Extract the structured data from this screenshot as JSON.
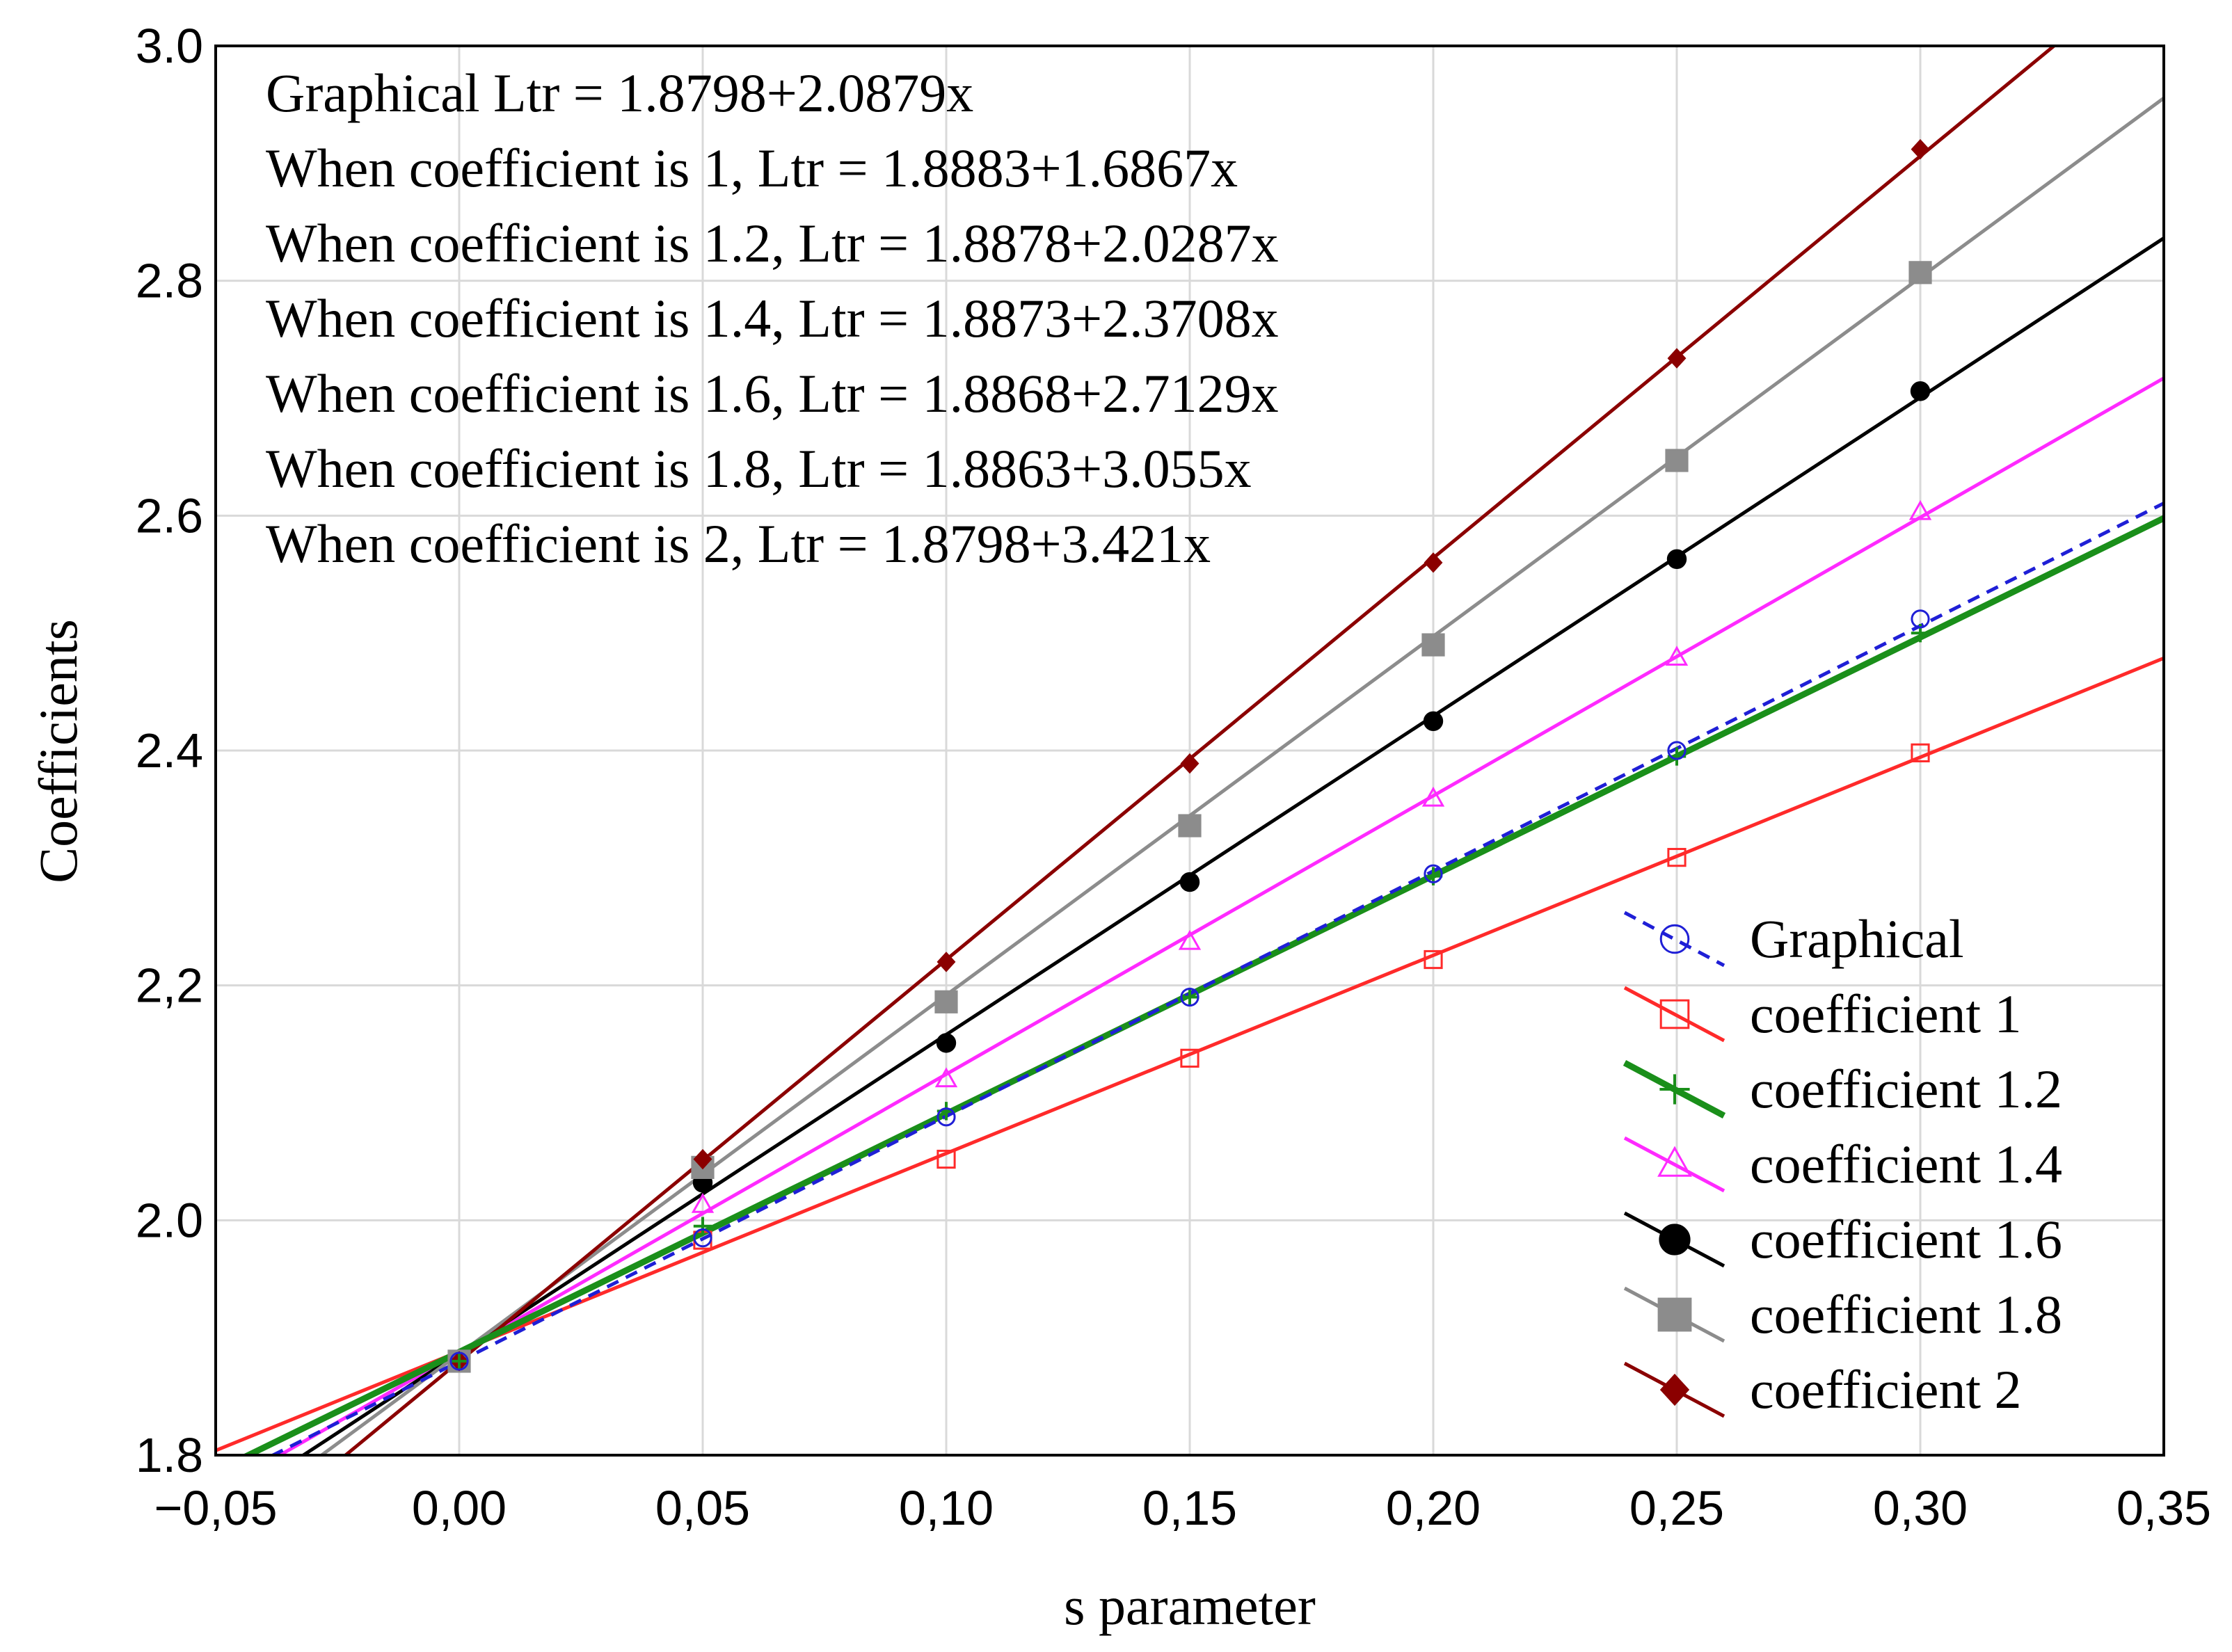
{
  "chart_data": {
    "type": "line",
    "title": "",
    "xlabel": "s parameter",
    "ylabel": "Coefficients",
    "xlim": [
      -0.05,
      0.35
    ],
    "ylim": [
      1.8,
      3.0
    ],
    "xticks": [
      -0.05,
      0.0,
      0.05,
      0.1,
      0.15,
      0.2,
      0.25,
      0.3,
      0.35
    ],
    "xtick_labels": [
      "−0,05",
      "0,00",
      "0,05",
      "0,10",
      "0,15",
      "0,20",
      "0,25",
      "0,30",
      "0,35"
    ],
    "yticks": [
      1.8,
      2.0,
      2.2,
      2.4,
      2.6,
      2.8,
      3.0
    ],
    "ytick_labels": [
      "1.8",
      "2.0",
      "2,2",
      "2.4",
      "2.6",
      "2.8",
      "3.0"
    ],
    "grid": true,
    "legend_position": "bottom-right",
    "annotations": [
      "Graphical Ltr  = 1.8798+2.0879x",
      "When coefficient is 1, Ltr = 1.8883+1.6867x",
      "When coefficient is 1.2, Ltr = 1.8878+2.0287x",
      "When coefficient is 1.4, Ltr = 1.8873+2.3708x",
      "When coefficient is 1.6, Ltr = 1.8868+2.7129x",
      "When coefficient is 1.8, Ltr  = 1.8863+3.055x",
      "When coefficient is 2, Ltr = 1.8798+3.421x"
    ],
    "x": [
      0.0,
      0.05,
      0.1,
      0.15,
      0.2,
      0.25,
      0.3
    ],
    "series": [
      {
        "name": "Graphical",
        "color": "#1f1fd6",
        "dashed": true,
        "marker": "circle-open",
        "intercept": 1.8798,
        "slope": 2.0879,
        "values": [
          1.88,
          1.985,
          2.088,
          2.19,
          2.295,
          2.4,
          2.512
        ]
      },
      {
        "name": "coefficient 1",
        "color": "#ff2a2a",
        "dashed": false,
        "marker": "square-open",
        "intercept": 1.8883,
        "slope": 1.6867,
        "values": [
          1.88,
          1.983,
          2.052,
          2.138,
          2.222,
          2.309,
          2.398
        ]
      },
      {
        "name": "coefficient 1.2",
        "color": "#1a8f1a",
        "dashed": false,
        "marker": "plus",
        "intercept": 1.8878,
        "slope": 2.0287,
        "values": [
          1.88,
          1.995,
          2.093,
          2.19,
          2.293,
          2.395,
          2.5
        ]
      },
      {
        "name": "coefficient 1.4",
        "color": "#ff2aff",
        "dashed": false,
        "marker": "triangle-open",
        "intercept": 1.8873,
        "slope": 2.3708,
        "values": [
          1.88,
          2.013,
          2.12,
          2.237,
          2.359,
          2.479,
          2.603
        ]
      },
      {
        "name": "coefficient 1.6",
        "color": "#000000",
        "dashed": false,
        "marker": "circle-filled",
        "intercept": 1.8868,
        "slope": 2.7129,
        "values": [
          1.88,
          2.032,
          2.151,
          2.288,
          2.425,
          2.563,
          2.706
        ]
      },
      {
        "name": "coefficient 1.8",
        "color": "#8c8c8c",
        "dashed": false,
        "marker": "square-filled",
        "intercept": 1.8863,
        "slope": 3.055,
        "values": [
          1.88,
          2.045,
          2.186,
          2.336,
          2.49,
          2.647,
          2.807
        ]
      },
      {
        "name": "coefficient 2",
        "color": "#8b0000",
        "dashed": false,
        "marker": "diamond-filled",
        "intercept": 1.8798,
        "slope": 3.421,
        "values": [
          1.88,
          2.052,
          2.22,
          2.389,
          2.56,
          2.734,
          2.912
        ]
      }
    ]
  }
}
